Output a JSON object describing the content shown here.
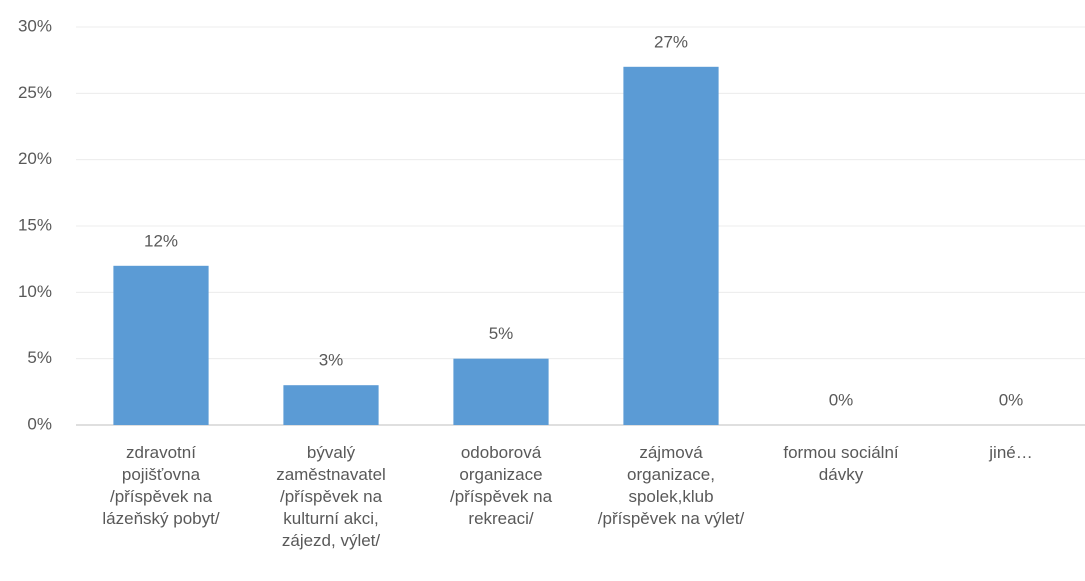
{
  "chart_data": {
    "type": "bar",
    "categories": [
      "zdravotní pojišťovna /příspěvek na lázeňský pobyt/",
      "bývalý zaměstnavatel /příspěvek na kulturní akci, zájezd, výlet/",
      "odoborová organizace /příspěvek na rekreaci/",
      "zájmová organizace, spolek,klub /příspěvek na výlet/",
      "formou sociální dávky",
      "jiné…"
    ],
    "values": [
      12,
      3,
      5,
      27,
      0,
      0
    ],
    "value_labels": [
      "12%",
      "3%",
      "5%",
      "27%",
      "0%",
      "0%"
    ],
    "color": "#5b9bd5",
    "ylim": [
      0,
      30
    ],
    "yticks": [
      {
        "value": 0,
        "label": "0%"
      },
      {
        "value": 5,
        "label": "5%"
      },
      {
        "value": 10,
        "label": "10%"
      },
      {
        "value": 15,
        "label": "15%"
      },
      {
        "value": 20,
        "label": "20%"
      },
      {
        "value": 25,
        "label": "25%"
      },
      {
        "value": 30,
        "label": "30%"
      }
    ],
    "grid": true
  }
}
